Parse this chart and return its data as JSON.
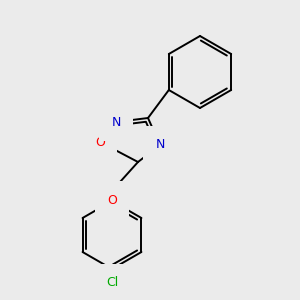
{
  "background_color": "#ebebeb",
  "bond_color": "#000000",
  "atom_colors": {
    "O": "#ff0000",
    "N": "#0000cc",
    "Cl": "#00aa00",
    "C": "#000000"
  },
  "line_width": 1.4,
  "fig_w": 3.0,
  "fig_h": 3.0,
  "dpi": 100
}
